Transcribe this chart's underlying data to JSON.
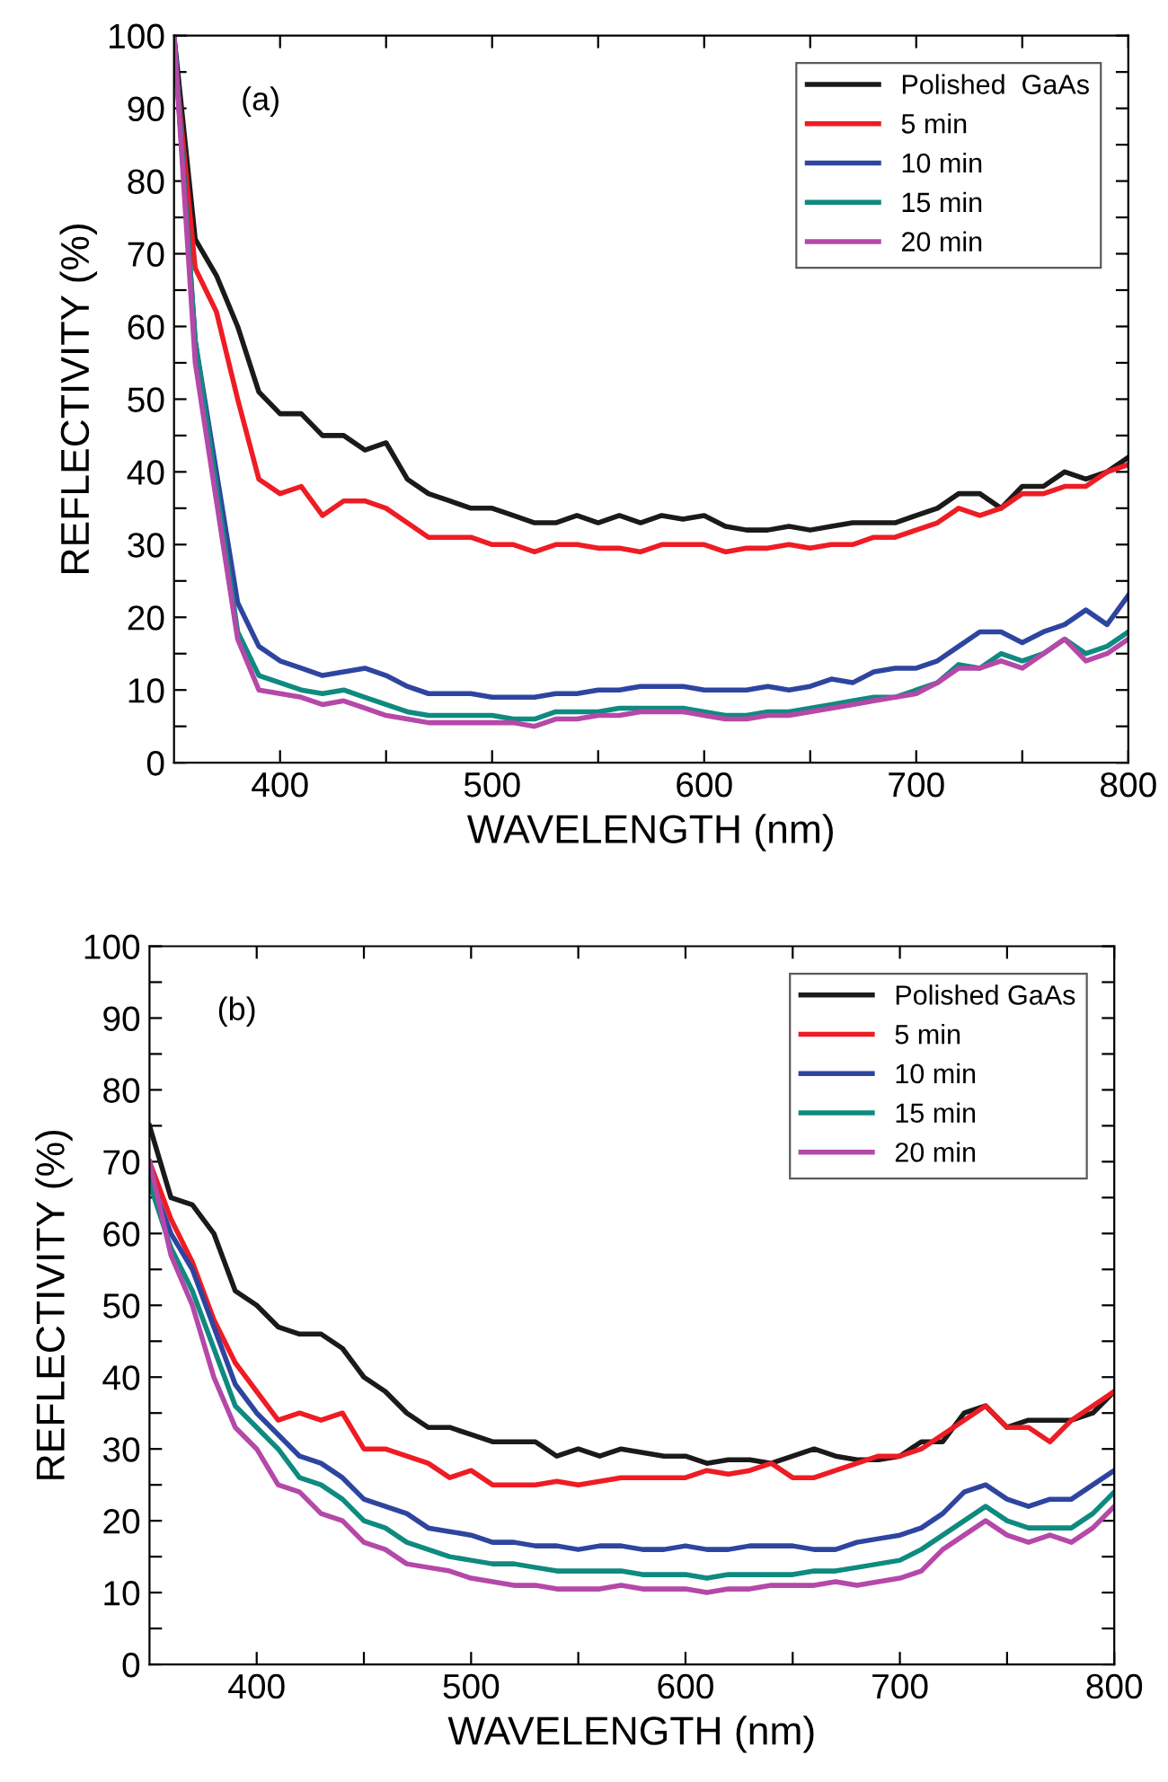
{
  "chart_data": [
    {
      "type": "line",
      "xlabel": "WAVELENGTH (nm)",
      "ylabel": "REFLECTIVITY (%)",
      "annotations": [
        "(a)"
      ],
      "x": [
        350,
        360,
        370,
        380,
        390,
        400,
        410,
        420,
        430,
        440,
        450,
        460,
        470,
        480,
        490,
        500,
        510,
        520,
        530,
        540,
        550,
        560,
        570,
        580,
        590,
        600,
        610,
        620,
        630,
        640,
        650,
        660,
        670,
        680,
        690,
        700,
        710,
        720,
        730,
        740,
        750,
        760,
        770,
        780,
        790,
        800
      ],
      "xlim": [
        350,
        800
      ],
      "ylim": [
        0,
        100
      ],
      "xticks": [
        400,
        {
          "value": 450,
          "label": null
        },
        500,
        {
          "value": 550,
          "label": null
        },
        600,
        {
          "value": 650,
          "label": null
        },
        700,
        {
          "value": 750,
          "label": null
        },
        800
      ],
      "yticks": [
        0,
        {
          "value": 5,
          "label": null
        },
        10,
        {
          "value": 15,
          "label": null
        },
        20,
        {
          "value": 25,
          "label": null
        },
        30,
        {
          "value": 35,
          "label": null
        },
        40,
        {
          "value": 45,
          "label": null
        },
        50,
        {
          "value": 55,
          "label": null
        },
        60,
        {
          "value": 65,
          "label": null
        },
        70,
        {
          "value": 75,
          "label": null
        },
        80,
        {
          "value": 85,
          "label": null
        },
        90,
        {
          "value": 95,
          "label": null
        },
        100
      ],
      "legend": "top right",
      "grid": false,
      "line_style": "solid",
      "series": [
        {
          "name": "Polished  GaAs",
          "color": "#1a1a1a",
          "values": [
            100,
            72,
            67,
            60,
            51,
            48,
            48,
            45,
            45,
            43,
            44,
            39,
            37,
            36,
            35,
            35,
            34,
            33,
            33,
            34,
            33,
            34,
            33,
            34,
            33.5,
            34,
            32.5,
            32,
            32,
            32.5,
            32,
            32.5,
            33,
            33,
            33,
            34,
            35,
            37,
            37,
            35,
            38,
            38,
            40,
            39,
            40,
            42
          ]
        },
        {
          "name": "5 min",
          "color": "#ee1c24",
          "values": [
            98,
            68,
            62,
            50,
            39,
            37,
            38,
            34,
            36,
            36,
            35,
            33,
            31,
            31,
            31,
            30,
            30,
            29,
            30,
            30,
            29.5,
            29.5,
            29,
            30,
            30,
            30,
            29,
            29.5,
            29.5,
            30,
            29.5,
            30,
            30,
            31,
            31,
            32,
            33,
            35,
            34,
            35,
            37,
            37,
            38,
            38,
            40,
            41
          ]
        },
        {
          "name": "10 min",
          "color": "#2e45a0",
          "values": [
            100,
            58,
            40,
            22,
            16,
            14,
            13,
            12,
            12.5,
            13,
            12,
            10.5,
            9.5,
            9.5,
            9.5,
            9,
            9,
            9,
            9.5,
            9.5,
            10,
            10,
            10.5,
            10.5,
            10.5,
            10,
            10,
            10,
            10.5,
            10,
            10.5,
            11.5,
            11,
            12.5,
            13,
            13,
            14,
            16,
            18,
            18,
            16.5,
            18,
            19,
            21,
            19,
            23
          ]
        },
        {
          "name": "15 min",
          "color": "#0f8a80",
          "values": [
            100,
            58,
            38,
            18,
            12,
            11,
            10,
            9.5,
            10,
            9,
            8,
            7,
            6.5,
            6.5,
            6.5,
            6.5,
            6,
            6,
            7,
            7,
            7,
            7.5,
            7.5,
            7.5,
            7.5,
            7,
            6.5,
            6.5,
            7,
            7,
            7.5,
            8,
            8.5,
            9,
            9,
            10,
            11,
            13.5,
            13,
            15,
            14,
            15,
            17,
            15,
            16,
            18
          ]
        },
        {
          "name": "20 min",
          "color": "#b548a8",
          "values": [
            100,
            55,
            36,
            17,
            10,
            9.5,
            9,
            8,
            8.5,
            7.5,
            6.5,
            6,
            5.5,
            5.5,
            5.5,
            5.5,
            5.5,
            5,
            6,
            6,
            6.5,
            6.5,
            7,
            7,
            7,
            6.5,
            6,
            6,
            6.5,
            6.5,
            7,
            7.5,
            8,
            8.5,
            9,
            9.5,
            11,
            13,
            13,
            14,
            13,
            15,
            17,
            14,
            15,
            17
          ]
        }
      ]
    },
    {
      "type": "line",
      "xlabel": "WAVELENGTH (nm)",
      "ylabel": "REFLECTIVITY (%)",
      "annotations": [
        "(b)"
      ],
      "x": [
        350,
        360,
        370,
        380,
        390,
        400,
        410,
        420,
        430,
        440,
        450,
        460,
        470,
        480,
        490,
        500,
        510,
        520,
        530,
        540,
        550,
        560,
        570,
        580,
        590,
        600,
        610,
        620,
        630,
        640,
        650,
        660,
        670,
        680,
        690,
        700,
        710,
        720,
        730,
        740,
        750,
        760,
        770,
        780,
        790,
        800
      ],
      "xlim": [
        350,
        800
      ],
      "ylim": [
        0,
        100
      ],
      "xticks": [
        400,
        {
          "value": 450,
          "label": null
        },
        500,
        {
          "value": 550,
          "label": null
        },
        600,
        {
          "value": 650,
          "label": null
        },
        700,
        {
          "value": 750,
          "label": null
        },
        800
      ],
      "yticks": [
        0,
        {
          "value": 5,
          "label": null
        },
        10,
        {
          "value": 15,
          "label": null
        },
        20,
        {
          "value": 25,
          "label": null
        },
        30,
        {
          "value": 35,
          "label": null
        },
        40,
        {
          "value": 45,
          "label": null
        },
        50,
        {
          "value": 55,
          "label": null
        },
        60,
        {
          "value": 65,
          "label": null
        },
        70,
        {
          "value": 75,
          "label": null
        },
        80,
        {
          "value": 85,
          "label": null
        },
        90,
        {
          "value": 95,
          "label": null
        },
        100
      ],
      "legend": "top right",
      "grid": false,
      "line_style": "solid",
      "series": [
        {
          "name": "Polished GaAs",
          "color": "#1a1a1a",
          "values": [
            75,
            65,
            64,
            60,
            52,
            50,
            47,
            46,
            46,
            44,
            40,
            38,
            35,
            33,
            33,
            32,
            31,
            31,
            31,
            29,
            30,
            29,
            30,
            29.5,
            29,
            29,
            28,
            28.5,
            28.5,
            28,
            29,
            30,
            29,
            28.5,
            28.5,
            29,
            31,
            31,
            35,
            36,
            33,
            34,
            34,
            34,
            35,
            38
          ]
        },
        {
          "name": "5 min",
          "color": "#ee1c24",
          "values": [
            70,
            62,
            56,
            48,
            42,
            38,
            34,
            35,
            34,
            35,
            30,
            30,
            29,
            28,
            26,
            27,
            25,
            25,
            25,
            25.5,
            25,
            25.5,
            26,
            26,
            26,
            26,
            27,
            26.5,
            27,
            28,
            26,
            26,
            27,
            28,
            29,
            29,
            30,
            32,
            34,
            36,
            33,
            33,
            31,
            34,
            36,
            38
          ]
        },
        {
          "name": "10 min",
          "color": "#2e45a0",
          "values": [
            68,
            60,
            55,
            47,
            39,
            35,
            32,
            29,
            28,
            26,
            23,
            22,
            21,
            19,
            18.5,
            18,
            17,
            17,
            16.5,
            16.5,
            16,
            16.5,
            16.5,
            16,
            16,
            16.5,
            16,
            16,
            16.5,
            16.5,
            16.5,
            16,
            16,
            17,
            17.5,
            18,
            19,
            21,
            24,
            25,
            23,
            22,
            23,
            23,
            25,
            27
          ]
        },
        {
          "name": "15 min",
          "color": "#0f8a80",
          "values": [
            67,
            58,
            52,
            44,
            36,
            33,
            30,
            26,
            25,
            23,
            20,
            19,
            17,
            16,
            15,
            14.5,
            14,
            14,
            13.5,
            13,
            13,
            13,
            13,
            12.5,
            12.5,
            12.5,
            12,
            12.5,
            12.5,
            12.5,
            12.5,
            13,
            13,
            13.5,
            14,
            14.5,
            16,
            18,
            20,
            22,
            20,
            19,
            19,
            19,
            21,
            24
          ]
        },
        {
          "name": "20 min",
          "color": "#b548a8",
          "values": [
            70,
            57,
            50,
            40,
            33,
            30,
            25,
            24,
            21,
            20,
            17,
            16,
            14,
            13.5,
            13,
            12,
            11.5,
            11,
            11,
            10.5,
            10.5,
            10.5,
            11,
            10.5,
            10.5,
            10.5,
            10,
            10.5,
            10.5,
            11,
            11,
            11,
            11.5,
            11,
            11.5,
            12,
            13,
            16,
            18,
            20,
            18,
            17,
            18,
            17,
            19,
            22
          ]
        }
      ]
    }
  ]
}
